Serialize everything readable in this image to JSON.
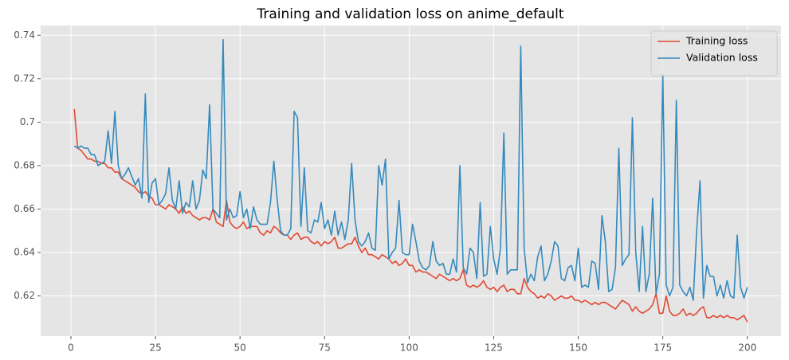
{
  "chart_data": {
    "type": "line",
    "title": "Training and validation loss on anime_default",
    "x": [
      1,
      2,
      3,
      4,
      5,
      6,
      7,
      8,
      9,
      10,
      11,
      12,
      13,
      14,
      15,
      16,
      17,
      18,
      19,
      20,
      21,
      22,
      23,
      24,
      25,
      26,
      27,
      28,
      29,
      30,
      31,
      32,
      33,
      34,
      35,
      36,
      37,
      38,
      39,
      40,
      41,
      42,
      43,
      44,
      45,
      46,
      47,
      48,
      49,
      50,
      51,
      52,
      53,
      54,
      55,
      56,
      57,
      58,
      59,
      60,
      61,
      62,
      63,
      64,
      65,
      66,
      67,
      68,
      69,
      70,
      71,
      72,
      73,
      74,
      75,
      76,
      77,
      78,
      79,
      80,
      81,
      82,
      83,
      84,
      85,
      86,
      87,
      88,
      89,
      90,
      91,
      92,
      93,
      94,
      95,
      96,
      97,
      98,
      99,
      100,
      101,
      102,
      103,
      104,
      105,
      106,
      107,
      108,
      109,
      110,
      111,
      112,
      113,
      114,
      115,
      116,
      117,
      118,
      119,
      120,
      121,
      122,
      123,
      124,
      125,
      126,
      127,
      128,
      129,
      130,
      131,
      132,
      133,
      134,
      135,
      136,
      137,
      138,
      139,
      140,
      141,
      142,
      143,
      144,
      145,
      146,
      147,
      148,
      149,
      150,
      151,
      152,
      153,
      154,
      155,
      156,
      157,
      158,
      159,
      160,
      161,
      162,
      163,
      164,
      165,
      166,
      167,
      168,
      169,
      170,
      171,
      172,
      173,
      174,
      175,
      176,
      177,
      178,
      179,
      180,
      181,
      182,
      183,
      184,
      185,
      186,
      187,
      188,
      189,
      190,
      191,
      192,
      193,
      194,
      195,
      196,
      197,
      198,
      199,
      200
    ],
    "series": [
      {
        "name": "Training loss",
        "color": "#e24a33",
        "values": [
          0.706,
          0.688,
          0.687,
          0.685,
          0.683,
          0.683,
          0.682,
          0.682,
          0.681,
          0.681,
          0.679,
          0.679,
          0.677,
          0.677,
          0.674,
          0.673,
          0.672,
          0.671,
          0.67,
          0.668,
          0.667,
          0.668,
          0.666,
          0.665,
          0.662,
          0.662,
          0.661,
          0.66,
          0.662,
          0.661,
          0.66,
          0.658,
          0.661,
          0.658,
          0.659,
          0.657,
          0.656,
          0.655,
          0.656,
          0.656,
          0.655,
          0.66,
          0.654,
          0.653,
          0.652,
          0.664,
          0.654,
          0.652,
          0.651,
          0.652,
          0.654,
          0.651,
          0.652,
          0.652,
          0.652,
          0.649,
          0.648,
          0.65,
          0.649,
          0.652,
          0.651,
          0.649,
          0.648,
          0.648,
          0.646,
          0.648,
          0.649,
          0.646,
          0.647,
          0.647,
          0.645,
          0.644,
          0.645,
          0.643,
          0.645,
          0.644,
          0.645,
          0.647,
          0.642,
          0.642,
          0.643,
          0.644,
          0.644,
          0.647,
          0.643,
          0.64,
          0.642,
          0.639,
          0.639,
          0.638,
          0.637,
          0.639,
          0.638,
          0.637,
          0.635,
          0.636,
          0.634,
          0.635,
          0.637,
          0.634,
          0.634,
          0.631,
          0.632,
          0.631,
          0.631,
          0.63,
          0.629,
          0.628,
          0.63,
          0.629,
          0.628,
          0.627,
          0.628,
          0.627,
          0.628,
          0.632,
          0.625,
          0.624,
          0.625,
          0.624,
          0.625,
          0.627,
          0.624,
          0.623,
          0.624,
          0.622,
          0.624,
          0.625,
          0.622,
          0.623,
          0.623,
          0.621,
          0.621,
          0.628,
          0.624,
          0.622,
          0.621,
          0.619,
          0.62,
          0.619,
          0.621,
          0.62,
          0.618,
          0.619,
          0.62,
          0.619,
          0.619,
          0.62,
          0.618,
          0.618,
          0.617,
          0.618,
          0.617,
          0.616,
          0.617,
          0.616,
          0.617,
          0.617,
          0.616,
          0.615,
          0.614,
          0.616,
          0.618,
          0.617,
          0.616,
          0.613,
          0.615,
          0.613,
          0.612,
          0.613,
          0.614,
          0.616,
          0.621,
          0.612,
          0.612,
          0.62,
          0.613,
          0.611,
          0.611,
          0.612,
          0.614,
          0.611,
          0.612,
          0.611,
          0.612,
          0.614,
          0.615,
          0.61,
          0.61,
          0.611,
          0.61,
          0.611,
          0.61,
          0.611,
          0.61,
          0.61,
          0.609,
          0.61,
          0.611,
          0.608
        ]
      },
      {
        "name": "Validation loss",
        "color": "#348abd",
        "values": [
          0.689,
          0.688,
          0.689,
          0.688,
          0.688,
          0.685,
          0.685,
          0.68,
          0.681,
          0.682,
          0.696,
          0.681,
          0.705,
          0.68,
          0.674,
          0.676,
          0.679,
          0.675,
          0.671,
          0.674,
          0.665,
          0.713,
          0.663,
          0.672,
          0.674,
          0.662,
          0.664,
          0.667,
          0.679,
          0.664,
          0.66,
          0.673,
          0.658,
          0.663,
          0.661,
          0.673,
          0.66,
          0.664,
          0.678,
          0.674,
          0.708,
          0.66,
          0.658,
          0.656,
          0.738,
          0.655,
          0.66,
          0.656,
          0.657,
          0.668,
          0.656,
          0.66,
          0.651,
          0.661,
          0.655,
          0.653,
          0.653,
          0.653,
          0.663,
          0.682,
          0.664,
          0.65,
          0.648,
          0.648,
          0.651,
          0.705,
          0.702,
          0.652,
          0.679,
          0.65,
          0.649,
          0.655,
          0.654,
          0.663,
          0.651,
          0.655,
          0.648,
          0.659,
          0.648,
          0.654,
          0.646,
          0.655,
          0.681,
          0.655,
          0.645,
          0.643,
          0.645,
          0.649,
          0.642,
          0.641,
          0.68,
          0.671,
          0.683,
          0.637,
          0.64,
          0.642,
          0.664,
          0.64,
          0.639,
          0.639,
          0.653,
          0.645,
          0.636,
          0.633,
          0.632,
          0.634,
          0.645,
          0.636,
          0.634,
          0.635,
          0.63,
          0.63,
          0.637,
          0.631,
          0.68,
          0.633,
          0.63,
          0.642,
          0.64,
          0.628,
          0.663,
          0.629,
          0.63,
          0.652,
          0.637,
          0.63,
          0.642,
          0.695,
          0.63,
          0.632,
          0.632,
          0.632,
          0.735,
          0.642,
          0.626,
          0.63,
          0.627,
          0.638,
          0.643,
          0.627,
          0.63,
          0.636,
          0.645,
          0.643,
          0.628,
          0.627,
          0.633,
          0.634,
          0.627,
          0.642,
          0.624,
          0.625,
          0.624,
          0.636,
          0.635,
          0.623,
          0.657,
          0.645,
          0.622,
          0.623,
          0.633,
          0.688,
          0.634,
          0.637,
          0.639,
          0.702,
          0.64,
          0.622,
          0.652,
          0.622,
          0.63,
          0.665,
          0.621,
          0.63,
          0.722,
          0.625,
          0.62,
          0.624,
          0.71,
          0.625,
          0.622,
          0.62,
          0.624,
          0.618,
          0.65,
          0.673,
          0.619,
          0.634,
          0.629,
          0.629,
          0.62,
          0.625,
          0.619,
          0.627,
          0.62,
          0.619,
          0.648,
          0.624,
          0.619,
          0.624
        ]
      }
    ],
    "xlim": [
      -8.95,
      209.95
    ],
    "xticks": [
      0,
      25,
      50,
      75,
      100,
      125,
      150,
      175,
      200
    ],
    "ylim": [
      0.6015,
      0.7445
    ],
    "yticks": [
      0.62,
      0.64,
      0.66,
      0.68,
      0.7,
      0.72,
      0.74
    ],
    "grid": true,
    "legend": "upper right"
  }
}
